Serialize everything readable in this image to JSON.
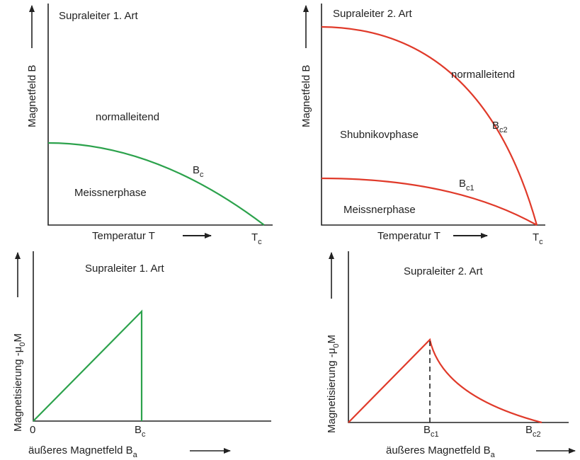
{
  "panels": [
    {
      "title": "Supraleiter 1. Art",
      "y_label": "Magnetfeld B",
      "x_label": "Temperatur T",
      "regions": [
        "normalleitend",
        "Meissnerphase"
      ],
      "curve_labels": [
        {
          "base": "B",
          "sub": "c"
        }
      ],
      "x_marks": [
        {
          "base": "T",
          "sub": "c"
        }
      ]
    },
    {
      "title": "Supraleiter 2. Art",
      "y_label": "Magnetfeld B",
      "x_label": "Temperatur T",
      "regions": [
        "normalleitend",
        "Shubnikovphase",
        "Meissnerphase"
      ],
      "curve_labels": [
        {
          "base": "B",
          "sub": "c2"
        },
        {
          "base": "B",
          "sub": "c1"
        }
      ],
      "x_marks": [
        {
          "base": "T",
          "sub": "c"
        }
      ]
    },
    {
      "title": "Supraleiter 1. Art",
      "y_label": {
        "base": "Magnetisierung -μ",
        "sub": "0",
        "tail": "M"
      },
      "x_label": {
        "base": "äußeres Magnetfeld B",
        "sub": "a"
      },
      "x_marks": [
        "0",
        {
          "base": "B",
          "sub": "c"
        }
      ]
    },
    {
      "title": "Supraleiter 2. Art",
      "y_label": {
        "base": "Magnetisierung -μ",
        "sub": "0",
        "tail": "M"
      },
      "x_label": {
        "base": "äußeres Magnetfeld B",
        "sub": "a"
      },
      "x_marks": [
        {
          "base": "B",
          "sub": "c1"
        },
        {
          "base": "B",
          "sub": "c2"
        }
      ]
    }
  ]
}
